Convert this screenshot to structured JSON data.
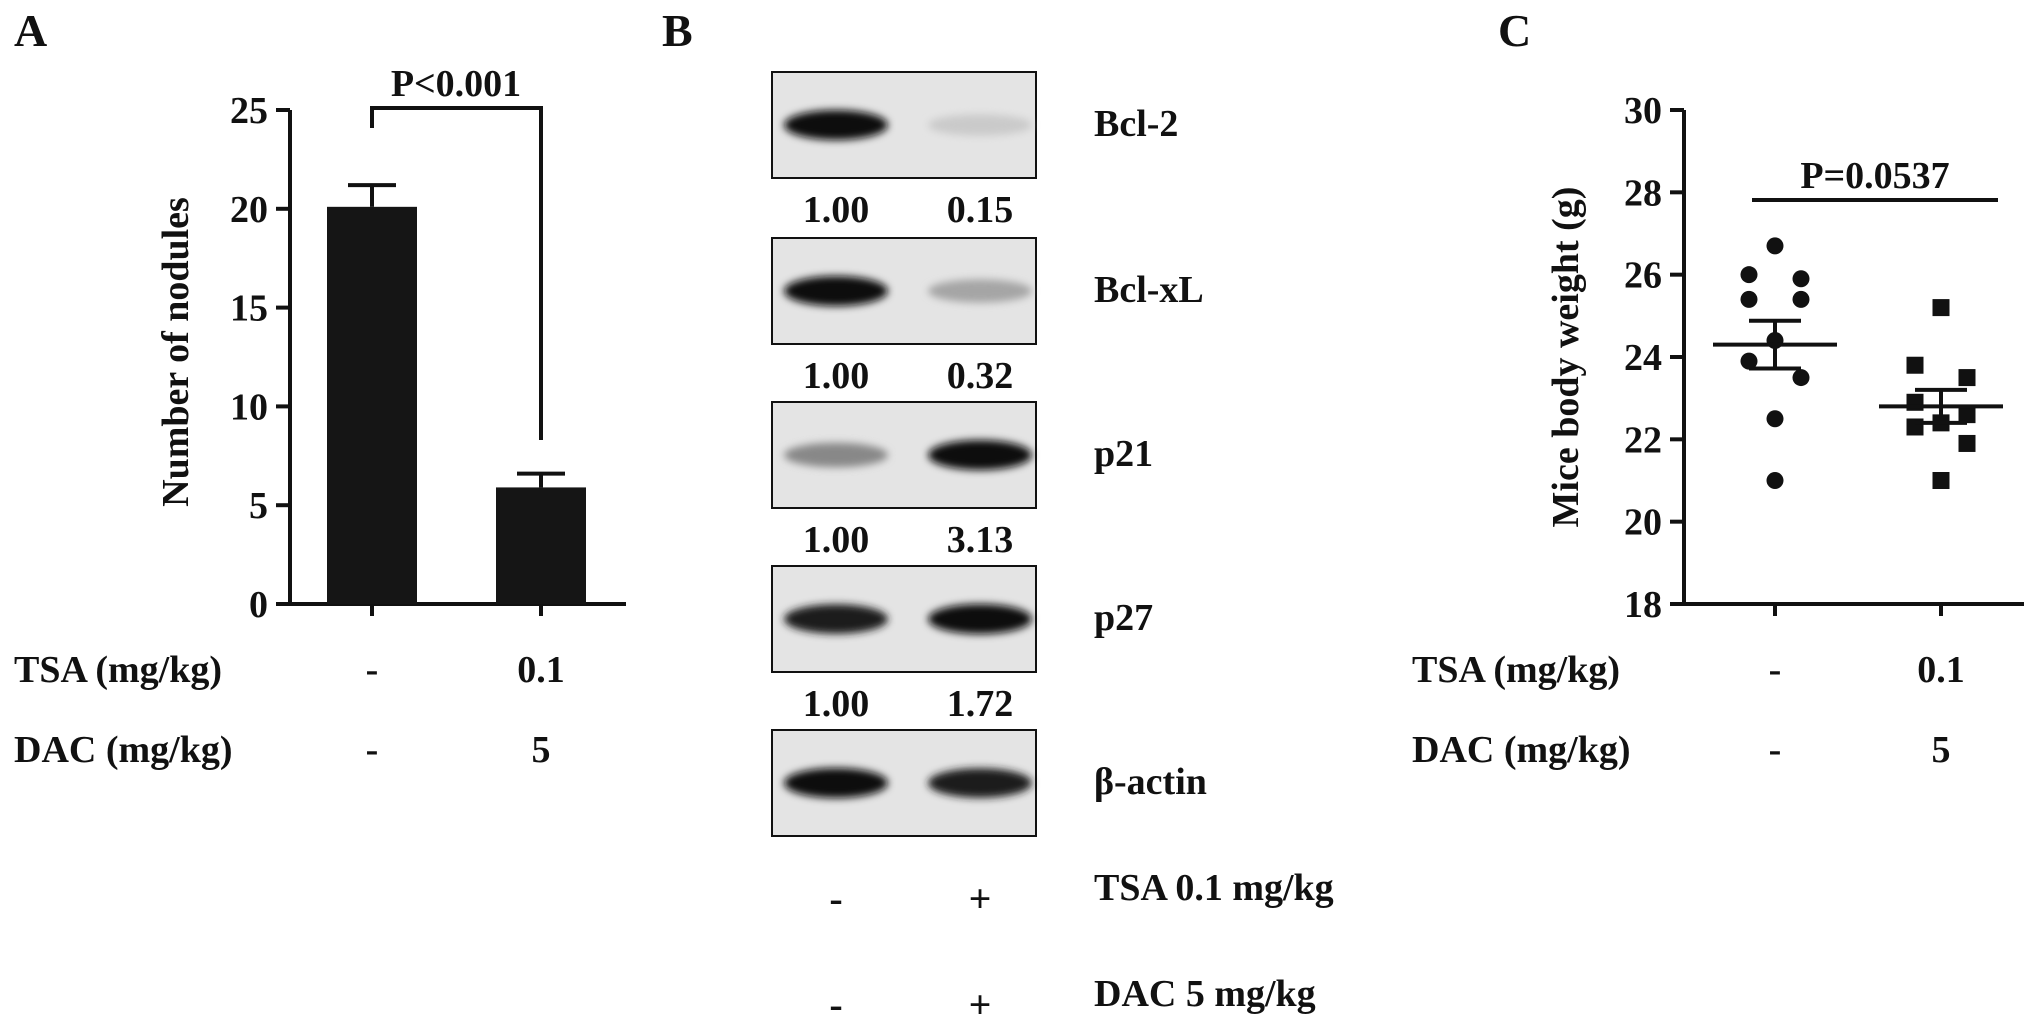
{
  "panels": {
    "a": {
      "letter": "A"
    },
    "b": {
      "letter": "B"
    },
    "c": {
      "letter": "C"
    }
  },
  "chart_data": [
    {
      "type": "bar",
      "panel": "A",
      "categories": [
        "-",
        "0.1"
      ],
      "series": [
        {
          "values": [
            20.1,
            5.9
          ],
          "errors": [
            1.1,
            0.7
          ]
        }
      ],
      "ylabel": "Number of nodules",
      "ylim": [
        0,
        25
      ],
      "yticks": [
        "0",
        "5",
        "10",
        "15",
        "20",
        "25"
      ],
      "annotation": "P<0.001",
      "bar_color": "#151515",
      "treatments": [
        {
          "label": "TSA  (mg/kg)",
          "values": [
            "-",
            "0.1"
          ]
        },
        {
          "label": "DAC (mg/kg)",
          "values": [
            "-",
            "5"
          ]
        }
      ]
    },
    {
      "type": "scatter",
      "panel": "C",
      "categories": [
        "-",
        "0.1"
      ],
      "series": [
        {
          "marker": "circle",
          "points": [
            26.7,
            26.0,
            25.9,
            25.4,
            25.4,
            24.4,
            23.9,
            23.5,
            22.5,
            21.0
          ],
          "mean": 24.3,
          "sem": 0.58
        },
        {
          "marker": "square",
          "points": [
            25.2,
            23.8,
            23.5,
            22.9,
            22.6,
            22.4,
            22.3,
            21.9,
            21.0,
            21.0
          ],
          "mean": 22.8,
          "sem": 0.4
        }
      ],
      "ylabel": "Mice body weight (g)",
      "ylim": [
        18,
        30
      ],
      "yticks": [
        "18",
        "20",
        "22",
        "24",
        "26",
        "28",
        "30"
      ],
      "annotation": "P=0.0537",
      "treatments": [
        {
          "label": "TSA  (mg/kg)",
          "values": [
            "-",
            "0.1"
          ]
        },
        {
          "label": "DAC (mg/kg)",
          "values": [
            "-",
            "5"
          ]
        }
      ]
    }
  ],
  "western_blot": {
    "bands": [
      {
        "label": "Bcl-2",
        "ratios": [
          "1.00",
          "0.15"
        ],
        "intensity": [
          1.0,
          0.15
        ]
      },
      {
        "label": "Bcl-xL",
        "ratios": [
          "1.00",
          "0.32"
        ],
        "intensity": [
          1.0,
          0.32
        ]
      },
      {
        "label": "p21",
        "ratios": [
          "1.00",
          "3.13"
        ],
        "intensity": [
          0.45,
          1.0
        ]
      },
      {
        "label": "p27",
        "ratios": [
          "1.00",
          "1.72"
        ],
        "intensity": [
          0.95,
          1.0
        ]
      },
      {
        "label": "β-actin",
        "ratios": [],
        "intensity": [
          1.0,
          0.95
        ]
      }
    ],
    "treatments": [
      {
        "label": "TSA 0.1 mg/kg",
        "signs": [
          "-",
          "+"
        ]
      },
      {
        "label": "DAC 5 mg/kg",
        "signs": [
          "-",
          "+"
        ]
      }
    ]
  }
}
